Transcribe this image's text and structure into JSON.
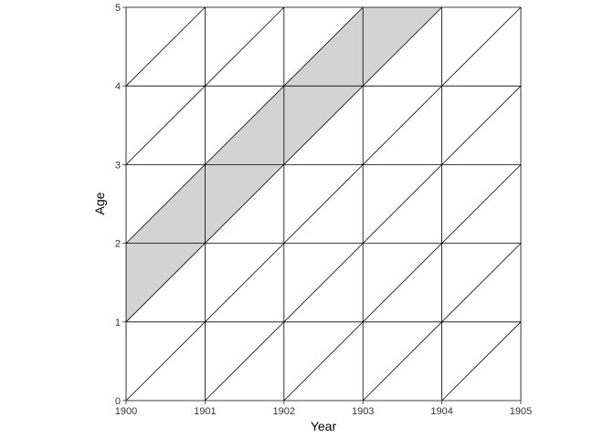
{
  "chart_data": {
    "type": "lexis-diagram",
    "title": "",
    "xlabel": "Year",
    "ylabel": "Age",
    "xlim": [
      1900,
      1905
    ],
    "ylim": [
      0,
      5
    ],
    "x_ticks": [
      "1900",
      "1901",
      "1902",
      "1903",
      "1904",
      "1905"
    ],
    "y_ticks": [
      "0",
      "1",
      "2",
      "3",
      "4",
      "5"
    ],
    "grid": true,
    "cohort_lines": "diagonal lines of slope 1 (age increases one year per calendar year)",
    "highlighted_region": {
      "description": "shaded cohort band",
      "polygon": [
        [
          1900,
          1
        ],
        [
          1904,
          5
        ],
        [
          1903,
          5
        ],
        [
          1900,
          2
        ]
      ],
      "fill": "#d3d3d3"
    },
    "colors": {
      "grid": "#000000",
      "shade": "#d3d3d3",
      "background": "#ffffff"
    }
  }
}
